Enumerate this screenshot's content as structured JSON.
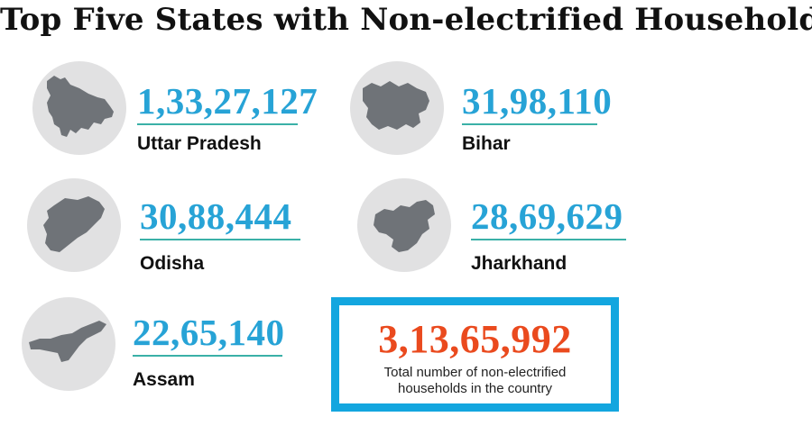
{
  "title": "Top Five States with Non-electrified Households:",
  "states": [
    {
      "number": "1,33,27,127",
      "name": "Uttar Pradesh"
    },
    {
      "number": "31,98,110",
      "name": "Bihar"
    },
    {
      "number": "30,88,444",
      "name": "Odisha"
    },
    {
      "number": "28,69,629",
      "name": "Jharkhand"
    },
    {
      "number": "22,65,140",
      "name": "Assam"
    }
  ],
  "total": {
    "number": "3,13,65,992",
    "caption": "Total number of non-electrified households in the country"
  },
  "colors": {
    "number_blue": "#27a3d6",
    "rule_teal": "#3ab0a7",
    "total_orange": "#ea4a1e",
    "box_border": "#13a6df",
    "circle_grey": "#e1e1e2",
    "map_grey": "#6f7378"
  },
  "icons": [
    "uttar-pradesh-map-icon",
    "bihar-map-icon",
    "odisha-map-icon",
    "jharkhand-map-icon",
    "assam-map-icon"
  ]
}
